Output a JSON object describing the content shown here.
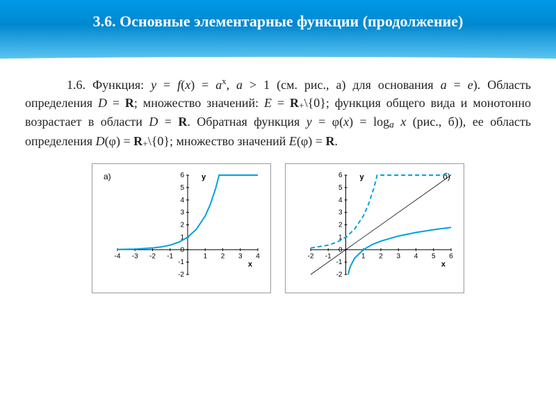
{
  "header": {
    "title": "3.6. Основные элементарные функции (продолжение)"
  },
  "paragraph": {
    "text": "1.6. Функция: y = f(x) = aˣ, a > 1 (см. рис., a) для основания a = e). Область определения D = R; множество значений: E = R₊\\{0}; функция общего вида и монотонно возрастает в области D = R. Обратная функция y = φ(x) = logₐ x (рис., б)), ее область определения D(φ) = R₊\\{0}; множество значений E(φ) = R."
  },
  "chartA": {
    "panel_label": "а)",
    "type": "line",
    "x_axis_label": "x",
    "y_axis_label": "y",
    "xlim": [
      -4,
      4
    ],
    "ylim": [
      -2,
      6
    ],
    "xticks": [
      -4,
      -3,
      -2,
      -1,
      0,
      1,
      2,
      3,
      4
    ],
    "yticks": [
      -2,
      -1,
      0,
      1,
      2,
      3,
      4,
      5,
      6
    ],
    "series_color": "#00a0e0",
    "series_width": 2,
    "axis_color": "#000000",
    "background_color": "#ffffff",
    "series": [
      {
        "x": -4.0,
        "y": 0.018
      },
      {
        "x": -3.0,
        "y": 0.05
      },
      {
        "x": -2.0,
        "y": 0.135
      },
      {
        "x": -1.5,
        "y": 0.223
      },
      {
        "x": -1.0,
        "y": 0.368
      },
      {
        "x": -0.5,
        "y": 0.607
      },
      {
        "x": 0.0,
        "y": 1.0
      },
      {
        "x": 0.5,
        "y": 1.649
      },
      {
        "x": 1.0,
        "y": 2.718
      },
      {
        "x": 1.3,
        "y": 3.669
      },
      {
        "x": 1.6,
        "y": 4.953
      },
      {
        "x": 1.79,
        "y": 6.0
      },
      {
        "x": 4.0,
        "y": 6.0
      }
    ]
  },
  "chartB": {
    "panel_label": "б)",
    "type": "line",
    "x_axis_label": "x",
    "y_axis_label": "y",
    "xlim": [
      -2,
      6
    ],
    "ylim": [
      -2,
      6
    ],
    "xticks": [
      -2,
      -1,
      0,
      1,
      2,
      3,
      4,
      5,
      6
    ],
    "yticks": [
      -2,
      -1,
      0,
      1,
      2,
      3,
      4,
      5,
      6
    ],
    "axis_color": "#000000",
    "background_color": "#ffffff",
    "exp_series": {
      "color": "#00a0e0",
      "width": 2,
      "dash": "6,4",
      "points": [
        {
          "x": -2.0,
          "y": 0.135
        },
        {
          "x": -1.0,
          "y": 0.368
        },
        {
          "x": -0.5,
          "y": 0.607
        },
        {
          "x": 0.0,
          "y": 1.0
        },
        {
          "x": 0.5,
          "y": 1.649
        },
        {
          "x": 1.0,
          "y": 2.718
        },
        {
          "x": 1.3,
          "y": 3.669
        },
        {
          "x": 1.6,
          "y": 4.953
        },
        {
          "x": 1.79,
          "y": 6.0
        },
        {
          "x": 6.0,
          "y": 6.0
        }
      ]
    },
    "log_series": {
      "color": "#00a0e0",
      "width": 2,
      "dash": "none",
      "points": [
        {
          "x": 0.135,
          "y": -2.0
        },
        {
          "x": 0.25,
          "y": -1.386
        },
        {
          "x": 0.5,
          "y": -0.693
        },
        {
          "x": 1.0,
          "y": 0.0
        },
        {
          "x": 1.5,
          "y": 0.405
        },
        {
          "x": 2.0,
          "y": 0.693
        },
        {
          "x": 3.0,
          "y": 1.099
        },
        {
          "x": 4.0,
          "y": 1.386
        },
        {
          "x": 5.0,
          "y": 1.609
        },
        {
          "x": 6.0,
          "y": 1.792
        }
      ]
    },
    "identity_line": {
      "color": "#000000",
      "width": 0.8,
      "x1": -2,
      "y1": -2,
      "x2": 6,
      "y2": 6
    }
  }
}
